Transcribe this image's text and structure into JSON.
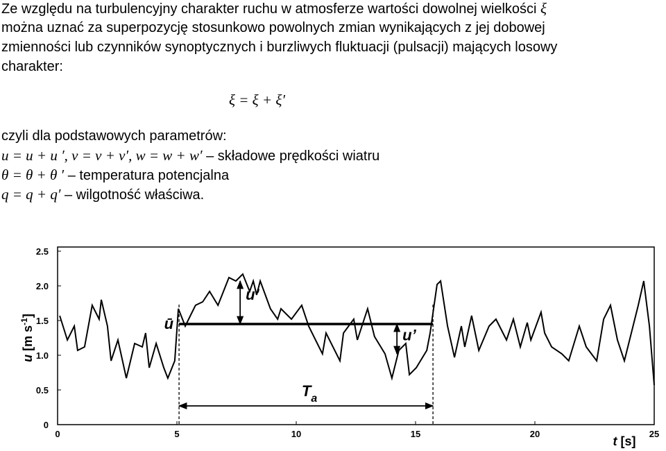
{
  "text": {
    "line1": "Ze względu na turbulencyjny charakter ruchu w atmosferze wartości dowolnej wielkości",
    "line1_symbol": "ξ",
    "line2": "można uznać za superpozycję stosunkowo powolnych zmian wynikających z jej dobowej",
    "line3": "zmienności lub czynników synoptycznych i burzliwych fluktuacji (pulsacji) mających losowy",
    "line4": "charakter:",
    "formula": "ξ = ξ + ξ′",
    "line5": "czyli dla podstawowych parametrów:",
    "wind_formula": "u = u + u ′, v = v + v′, w = w + w′",
    "wind_desc": " – składowe prędkości wiatru",
    "theta_formula": "θ = θ + θ ′",
    "theta_desc": " – temperatura potencjalna",
    "q_formula": "q = q + q′",
    "q_desc": " – wilgotność właściwa."
  },
  "chart_data": {
    "type": "line",
    "x": [
      0.09,
      0.41,
      0.7,
      0.84,
      1.13,
      1.45,
      1.74,
      1.83,
      2.09,
      2.24,
      2.53,
      2.88,
      3.23,
      3.55,
      3.69,
      3.84,
      4.13,
      4.45,
      4.62,
      4.91,
      5.06,
      5.35,
      5.78,
      6.08,
      6.37,
      6.72,
      7.18,
      7.47,
      7.76,
      8.05,
      8.2,
      8.34,
      8.49,
      8.92,
      9.22,
      9.36,
      9.8,
      10.23,
      10.52,
      11.1,
      11.25,
      11.83,
      11.98,
      12.41,
      12.56,
      12.99,
      13.28,
      13.72,
      14.01,
      14.3,
      14.59,
      14.74,
      15.03,
      15.47,
      15.61,
      15.9,
      16.05,
      16.34,
      16.63,
      16.92,
      17.06,
      17.35,
      17.65,
      18.08,
      18.37,
      18.81,
      19.1,
      19.39,
      19.68,
      19.83,
      20.26,
      20.41,
      20.7,
      21.13,
      21.42,
      21.86,
      22.15,
      22.59,
      22.88,
      23.17,
      23.46,
      23.75,
      24.04,
      24.33,
      24.56,
      24.8,
      25.0
    ],
    "values": [
      1.57,
      1.22,
      1.42,
      1.07,
      1.12,
      1.72,
      1.52,
      1.8,
      1.42,
      0.92,
      1.22,
      0.67,
      1.17,
      1.12,
      1.32,
      0.82,
      1.17,
      0.82,
      0.67,
      0.92,
      1.67,
      1.42,
      1.72,
      1.77,
      1.92,
      1.72,
      2.12,
      2.07,
      2.17,
      1.92,
      2.07,
      1.87,
      2.07,
      1.67,
      1.52,
      1.67,
      1.52,
      1.72,
      1.42,
      1.02,
      1.32,
      0.92,
      1.32,
      1.52,
      1.22,
      1.67,
      1.27,
      1.02,
      0.67,
      1.07,
      1.17,
      0.72,
      0.82,
      1.07,
      1.32,
      2.02,
      2.07,
      1.42,
      0.97,
      1.42,
      1.12,
      1.57,
      1.07,
      1.42,
      1.52,
      1.22,
      1.52,
      1.12,
      1.47,
      1.22,
      1.62,
      1.32,
      1.12,
      1.02,
      0.92,
      1.42,
      1.12,
      0.92,
      1.52,
      1.72,
      1.22,
      0.92,
      1.32,
      1.72,
      2.07,
      1.42,
      0.57
    ],
    "color": "#000000",
    "xlim": [
      0,
      25
    ],
    "ylim": [
      0,
      2.5
    ],
    "xticks": [
      0,
      5,
      10,
      15,
      20,
      25
    ],
    "yticks": [
      0,
      0.5,
      {
        "value": 1,
        "label": "1.0"
      },
      1.5,
      {
        "value": 2,
        "label": "2.0"
      },
      2.5
    ],
    "xlabel": {
      "var": "t",
      "unit": "[s]"
    },
    "ylabel": {
      "var": "u",
      "unit": "[m s",
      "exp": "-1",
      "close": "]"
    },
    "mean": {
      "label": "ū",
      "value": 1.45,
      "start": 5.09,
      "end": 15.73
    },
    "fluctuations": [
      {
        "label": "u’",
        "t": 7.65,
        "from": 1.45,
        "to": 2.07
      },
      {
        "label": "u’",
        "t": 14.22,
        "from": 1.45,
        "to": 1.02
      }
    ],
    "period": {
      "label": "T",
      "sub": "a",
      "level": 0.27
    }
  }
}
